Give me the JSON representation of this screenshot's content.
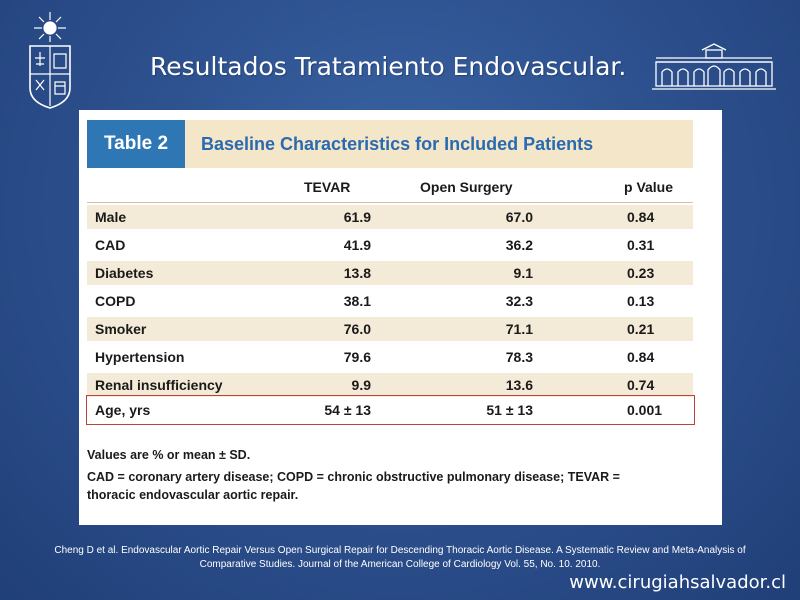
{
  "slide": {
    "title": "Resultados Tratamiento Endovascular.",
    "citation_line1": "Cheng D et al. Endovascular Aortic Repair Versus Open Surgical Repair for Descending Thoracic Aortic Disease. A Systematic Review and Meta-Analysis of",
    "citation_line2": "Comparative Studies. Journal of the American College of Cardiology Vol. 55, No. 10. 2010.",
    "website": "www.cirugiahsalvador.cl",
    "colors": {
      "background": "#2e5290",
      "table_tag": "#2f77b4",
      "caption": "#2a6ab0",
      "row_shade": "#f3ead7",
      "highlight_border": "#c0403a"
    }
  },
  "logos": {
    "left": "university-crest-icon",
    "right": "hospital-building-icon"
  },
  "table": {
    "tag": "Table 2",
    "caption": "Baseline Characteristics for Included Patients",
    "columns": [
      "",
      "TEVAR",
      "Open Surgery",
      "p Value"
    ],
    "rows": [
      {
        "label": "Male",
        "tevar": "61.9",
        "open": "67.0",
        "p": "0.84"
      },
      {
        "label": "CAD",
        "tevar": "41.9",
        "open": "36.2",
        "p": "0.31"
      },
      {
        "label": "Diabetes",
        "tevar": "13.8",
        "open": "9.1",
        "p": "0.23"
      },
      {
        "label": "COPD",
        "tevar": "38.1",
        "open": "32.3",
        "p": "0.13"
      },
      {
        "label": "Smoker",
        "tevar": "76.0",
        "open": "71.1",
        "p": "0.21"
      },
      {
        "label": "Hypertension",
        "tevar": "79.6",
        "open": "78.3",
        "p": "0.84"
      },
      {
        "label": "Renal insufficiency",
        "tevar": "9.9",
        "open": "13.6",
        "p": "0.74"
      },
      {
        "label": "Age, yrs",
        "tevar": "54 ± 13",
        "open": "51 ± 13",
        "p": "0.001"
      }
    ],
    "highlighted_row": "Age, yrs",
    "note1": "Values are % or mean ± SD.",
    "note2_line1": "CAD = coronary artery disease; COPD = chronic obstructive pulmonary disease; TEVAR =",
    "note2_line2": "thoracic endovascular aortic repair."
  }
}
